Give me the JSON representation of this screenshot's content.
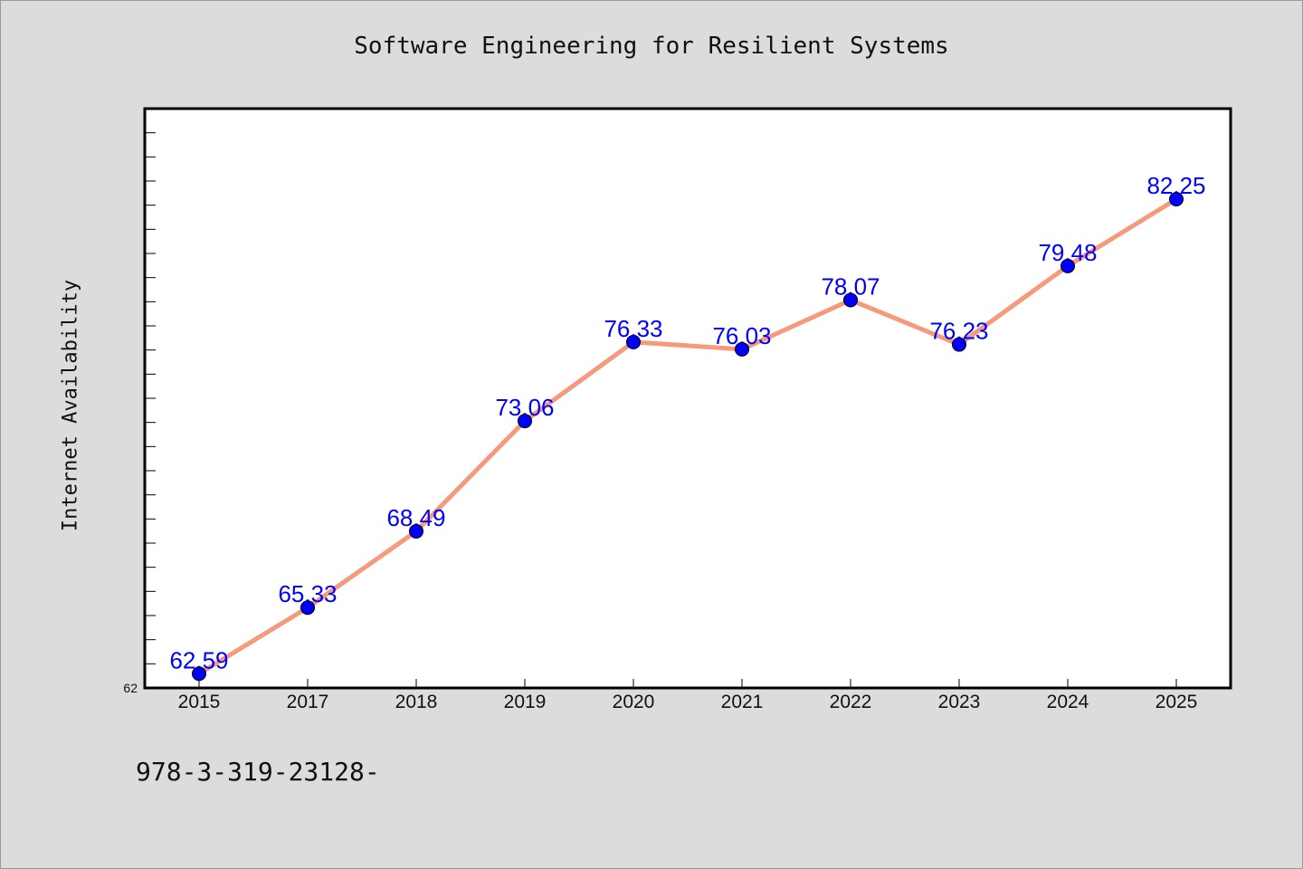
{
  "title": "Software Engineering for Resilient Systems",
  "footnote": "978-3-319-23128-",
  "colors": {
    "background": "#dcdcdc",
    "plot_area": "#ffffff",
    "line": "#f59a7b",
    "marker": "#0000ff",
    "data_label": "#0000ff"
  },
  "chart_data": {
    "type": "line",
    "title": "Software Engineering for Resilient Systems",
    "xlabel": "",
    "ylabel": "Internet Availability",
    "categories": [
      "2015",
      "2017",
      "2018",
      "2019",
      "2020",
      "2021",
      "2022",
      "2023",
      "2024",
      "2025"
    ],
    "series": [
      {
        "values": [
          62.59,
          65.33,
          68.49,
          73.06,
          76.33,
          76.03,
          78.07,
          76.23,
          79.48,
          82.25
        ],
        "data_labels": [
          "62.59",
          "65.33",
          "68.49",
          "73.06",
          "76.33",
          "76.03",
          "78.07",
          "76.23",
          "79.48",
          "82.25"
        ]
      }
    ],
    "ylim": [
      62,
      86
    ],
    "y_tick_labels": [
      "62"
    ],
    "y_minor_tick_step": 1,
    "grid": false,
    "legend": "none"
  }
}
